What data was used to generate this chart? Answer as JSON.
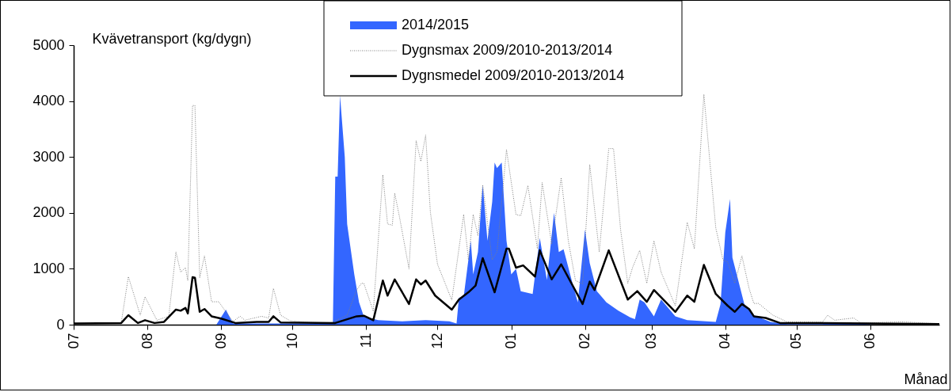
{
  "chart_data": {
    "type": "area",
    "ylabel": "Kvävetransport (kg/dygn)",
    "xlabel": "Månad",
    "xlim": [
      "2014-07-01",
      "2015-06-30"
    ],
    "xticks": [
      {
        "value": "2014-07-01",
        "label": "07"
      },
      {
        "value": "2014-08-01",
        "label": "08"
      },
      {
        "value": "2014-09-01",
        "label": "09"
      },
      {
        "value": "2014-10-01",
        "label": "10"
      },
      {
        "value": "2014-11-01",
        "label": "11"
      },
      {
        "value": "2014-12-01",
        "label": "12"
      },
      {
        "value": "2015-01-01",
        "label": "01"
      },
      {
        "value": "2015-02-01",
        "label": "02"
      },
      {
        "value": "2015-03-01",
        "label": "03"
      },
      {
        "value": "2015-04-01",
        "label": "04"
      },
      {
        "value": "2015-05-01",
        "label": "05"
      },
      {
        "value": "2015-06-01",
        "label": "06"
      }
    ],
    "ylim": [
      0,
      5000
    ],
    "yticks": [
      0,
      1000,
      2000,
      3000,
      4000,
      5000
    ],
    "legend": "top",
    "series": [
      {
        "name": "2014/2015",
        "color": "#3366ff",
        "x": [
          "2014-07-01",
          "2014-08-30",
          "2014-09-03",
          "2014-09-06",
          "2014-10-17",
          "2014-10-18",
          "2014-10-19",
          "2014-10-20",
          "2014-10-21",
          "2014-10-23",
          "2014-10-24",
          "2014-10-27",
          "2014-10-29",
          "2014-10-31",
          "2014-11-06",
          "2014-11-16",
          "2014-11-26",
          "2014-12-06",
          "2014-12-09",
          "2014-12-10",
          "2014-12-12",
          "2014-12-15",
          "2014-12-16",
          "2014-12-18",
          "2014-12-20",
          "2014-12-22",
          "2014-12-24",
          "2014-12-25",
          "2014-12-26",
          "2014-12-28",
          "2014-12-30",
          "2015-01-01",
          "2015-01-03",
          "2015-01-05",
          "2015-01-10",
          "2015-01-13",
          "2015-01-16",
          "2015-01-19",
          "2015-01-21",
          "2015-01-23",
          "2015-01-27",
          "2015-01-29",
          "2015-02-01",
          "2015-02-03",
          "2015-02-06",
          "2015-02-10",
          "2015-02-15",
          "2015-02-20",
          "2015-02-22",
          "2015-02-24",
          "2015-02-26",
          "2015-03-02",
          "2015-03-05",
          "2015-03-11",
          "2015-03-16",
          "2015-03-28",
          "2015-03-30",
          "2015-04-01",
          "2015-04-03",
          "2015-04-04",
          "2015-04-09",
          "2015-04-13",
          "2015-04-20",
          "2015-04-27",
          "2015-05-12",
          "2015-05-14",
          "2015-05-25",
          "2015-06-03",
          "2015-06-30"
        ],
        "values": [
          0,
          0,
          270,
          20,
          20,
          30,
          2650,
          2650,
          4100,
          3000,
          1800,
          900,
          400,
          150,
          80,
          60,
          80,
          60,
          20,
          480,
          500,
          1500,
          900,
          1300,
          2500,
          1500,
          2200,
          2900,
          2800,
          2900,
          1500,
          900,
          1000,
          600,
          550,
          1550,
          800,
          2000,
          1300,
          1350,
          700,
          400,
          1700,
          1100,
          600,
          400,
          250,
          130,
          100,
          450,
          400,
          150,
          450,
          150,
          80,
          50,
          370,
          1650,
          2250,
          1200,
          370,
          170,
          50,
          10,
          10,
          40,
          30,
          0,
          0
        ]
      },
      {
        "name": "Dygnsmax 2009/2010-2013/2014",
        "type": "line",
        "color": "#808080",
        "line_style": "dotted",
        "x": [
          "2014-07-01",
          "2014-07-21",
          "2014-07-24",
          "2014-07-29",
          "2014-07-31",
          "2014-08-05",
          "2014-08-10",
          "2014-08-13",
          "2014-08-15",
          "2014-08-17",
          "2014-08-18",
          "2014-08-20",
          "2014-08-21",
          "2014-08-23",
          "2014-08-25",
          "2014-08-28",
          "2014-08-31",
          "2014-09-03",
          "2014-09-06",
          "2014-09-09",
          "2014-09-11",
          "2014-09-18",
          "2014-09-21",
          "2014-09-23",
          "2014-09-26",
          "2014-09-30",
          "2014-10-08",
          "2014-10-17",
          "2014-10-24",
          "2014-10-28",
          "2014-10-30",
          "2014-10-31",
          "2014-11-04",
          "2014-11-08",
          "2014-11-10",
          "2014-11-12",
          "2014-11-13",
          "2014-11-15",
          "2014-11-19",
          "2014-11-22",
          "2014-11-24",
          "2014-11-26",
          "2014-11-28",
          "2014-12-01",
          "2014-12-07",
          "2014-12-12",
          "2014-12-14",
          "2014-12-16",
          "2014-12-18",
          "2014-12-20",
          "2014-12-24",
          "2014-12-26",
          "2014-12-30",
          "2015-01-03",
          "2015-01-05",
          "2015-01-08",
          "2015-01-12",
          "2015-01-14",
          "2015-01-18",
          "2015-01-22",
          "2015-01-25",
          "2015-01-28",
          "2015-01-31",
          "2015-02-03",
          "2015-02-07",
          "2015-02-11",
          "2015-02-13",
          "2015-02-16",
          "2015-02-19",
          "2015-02-21",
          "2015-02-24",
          "2015-02-27",
          "2015-03-02",
          "2015-03-05",
          "2015-03-11",
          "2015-03-16",
          "2015-03-19",
          "2015-03-23",
          "2015-03-28",
          "2015-03-31",
          "2015-04-02",
          "2015-04-05",
          "2015-04-08",
          "2015-04-11",
          "2015-04-13",
          "2015-04-15",
          "2015-04-21",
          "2015-04-27",
          "2015-05-12",
          "2015-05-14",
          "2015-05-17",
          "2015-05-25",
          "2015-05-28",
          "2015-06-14",
          "2015-06-30"
        ],
        "values": [
          10,
          30,
          860,
          170,
          500,
          80,
          150,
          1300,
          940,
          1020,
          790,
          3920,
          3920,
          840,
          1230,
          410,
          410,
          230,
          60,
          150,
          80,
          150,
          120,
          650,
          170,
          70,
          40,
          30,
          170,
          620,
          740,
          740,
          240,
          2680,
          1800,
          1780,
          2350,
          1930,
          1000,
          3290,
          2920,
          3390,
          2010,
          1080,
          440,
          1970,
          1160,
          1970,
          1590,
          2500,
          1160,
          1300,
          3130,
          1970,
          1950,
          2490,
          1360,
          2540,
          1440,
          2630,
          1500,
          790,
          730,
          2860,
          1300,
          3150,
          3150,
          1690,
          740,
          1020,
          1330,
          740,
          1500,
          940,
          340,
          1830,
          1360,
          4120,
          1730,
          1160,
          1120,
          740,
          1230,
          650,
          380,
          380,
          170,
          50,
          50,
          170,
          80,
          120,
          30,
          50,
          20
        ]
      },
      {
        "name": "Dygnsmedel 2009/2010-2013/2014",
        "type": "line",
        "color": "#000000",
        "line_style": "solid",
        "x": [
          "2014-07-01",
          "2014-07-21",
          "2014-07-24",
          "2014-07-28",
          "2014-07-31",
          "2014-08-04",
          "2014-08-08",
          "2014-08-13",
          "2014-08-15",
          "2014-08-17",
          "2014-08-18",
          "2014-08-20",
          "2014-08-21",
          "2014-08-23",
          "2014-08-25",
          "2014-08-28",
          "2014-09-01",
          "2014-09-07",
          "2014-09-16",
          "2014-09-21",
          "2014-09-23",
          "2014-09-26",
          "2014-10-19",
          "2014-10-28",
          "2014-10-31",
          "2014-11-04",
          "2014-11-08",
          "2014-11-10",
          "2014-11-13",
          "2014-11-19",
          "2014-11-22",
          "2014-11-24",
          "2014-11-26",
          "2014-11-30",
          "2014-12-07",
          "2014-12-10",
          "2014-12-14",
          "2014-12-17",
          "2014-12-20",
          "2014-12-25",
          "2014-12-30",
          "2014-12-31",
          "2015-01-03",
          "2015-01-06",
          "2015-01-11",
          "2015-01-13",
          "2015-01-18",
          "2015-01-22",
          "2015-01-31",
          "2015-02-03",
          "2015-02-05",
          "2015-02-11",
          "2015-02-19",
          "2015-02-23",
          "2015-02-27",
          "2015-03-02",
          "2015-03-11",
          "2015-03-16",
          "2015-03-19",
          "2015-03-23",
          "2015-03-28",
          "2015-04-02",
          "2015-04-05",
          "2015-04-08",
          "2015-04-11",
          "2015-04-13",
          "2015-04-18",
          "2015-04-24",
          "2015-05-13",
          "2015-06-30"
        ],
        "values": [
          20,
          30,
          170,
          30,
          80,
          30,
          50,
          270,
          250,
          300,
          200,
          850,
          840,
          230,
          280,
          150,
          110,
          30,
          50,
          50,
          150,
          40,
          30,
          150,
          160,
          80,
          790,
          520,
          810,
          370,
          810,
          720,
          790,
          520,
          270,
          450,
          580,
          700,
          1190,
          580,
          1360,
          1360,
          1020,
          1060,
          860,
          1330,
          810,
          1080,
          370,
          770,
          620,
          1330,
          450,
          600,
          410,
          620,
          230,
          520,
          410,
          1070,
          550,
          340,
          230,
          370,
          280,
          150,
          120,
          30,
          30,
          10
        ]
      }
    ]
  }
}
